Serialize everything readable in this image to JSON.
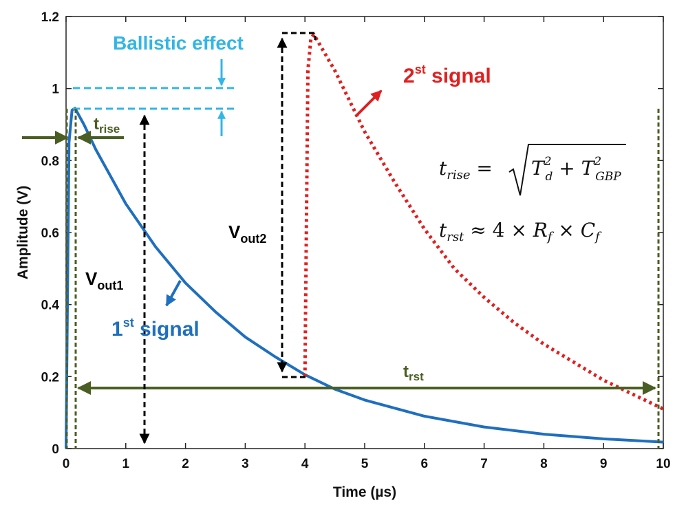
{
  "chart_data": {
    "type": "line",
    "xlabel": "Time (µs)",
    "ylabel": "Amplitude (V)",
    "xlim": [
      0,
      10
    ],
    "ylim": [
      0,
      1.2
    ],
    "x_ticks": [
      "0",
      "1",
      "2",
      "3",
      "4",
      "5",
      "6",
      "7",
      "8",
      "9",
      "10"
    ],
    "y_ticks": [
      "0",
      "0.2",
      "0.4",
      "0.6",
      "0.8",
      "1",
      "1.2"
    ],
    "grid": false,
    "series": [
      {
        "name": "1st signal",
        "color": "#1f6fbf",
        "style": "solid",
        "x": [
          0,
          0.05,
          0.1,
          0.15,
          0.3,
          0.5,
          1,
          1.5,
          2,
          2.5,
          3,
          3.5,
          4,
          4.5,
          5,
          6,
          7,
          8,
          9,
          10
        ],
        "y": [
          0,
          0.85,
          0.94,
          0.945,
          0.9,
          0.83,
          0.68,
          0.56,
          0.46,
          0.38,
          0.31,
          0.255,
          0.205,
          0.165,
          0.135,
          0.09,
          0.06,
          0.04,
          0.027,
          0.018
        ]
      },
      {
        "name": "2nd signal",
        "color": "#e02020",
        "style": "dotted",
        "x": [
          4.0,
          4.05,
          4.1,
          4.15,
          4.5,
          5,
          5.5,
          6,
          6.5,
          7,
          7.5,
          8,
          8.5,
          9,
          9.5,
          10
        ],
        "y": [
          0.2,
          1.05,
          1.14,
          1.15,
          1.05,
          0.88,
          0.74,
          0.61,
          0.5,
          0.42,
          0.35,
          0.29,
          0.24,
          0.19,
          0.15,
          0.11
        ]
      }
    ]
  },
  "annotations": {
    "ballistic_label": "Ballistic effect",
    "trise_main": "t",
    "trise_sub": "rise",
    "vout1_main": "V",
    "vout1_sub": "out1",
    "vout2_main": "V",
    "vout2_sub": "out2",
    "first_num": "1",
    "first_sup": "st",
    "first_word": " signal",
    "second_num": "2",
    "second_sup": "st",
    "second_word": " signal",
    "trst_main": "t",
    "trst_sub": "rst",
    "formula1_lhs": "t",
    "formula1_lhs_sub": "rise",
    "formula1_eq": " = ",
    "formula1_t1": "T",
    "formula1_t1_sub": "d",
    "formula1_t1_sup": "2",
    "formula1_plus": " + ",
    "formula1_t2": "T",
    "formula1_t2_sub": "GBP",
    "formula1_t2_sup": "2",
    "formula2_lhs": "t",
    "formula2_lhs_sub": "rst",
    "formula2_approx": " ≈ 4 × ",
    "formula2_r": "R",
    "formula2_r_sub": "f",
    "formula2_times": " × ",
    "formula2_c": "C",
    "formula2_c_sub": "f",
    "colors": {
      "ballistic": "#33b5e5",
      "green": "#4a5e23",
      "blue": "#1f6fbf",
      "red": "#e02020",
      "black": "#000000"
    }
  }
}
